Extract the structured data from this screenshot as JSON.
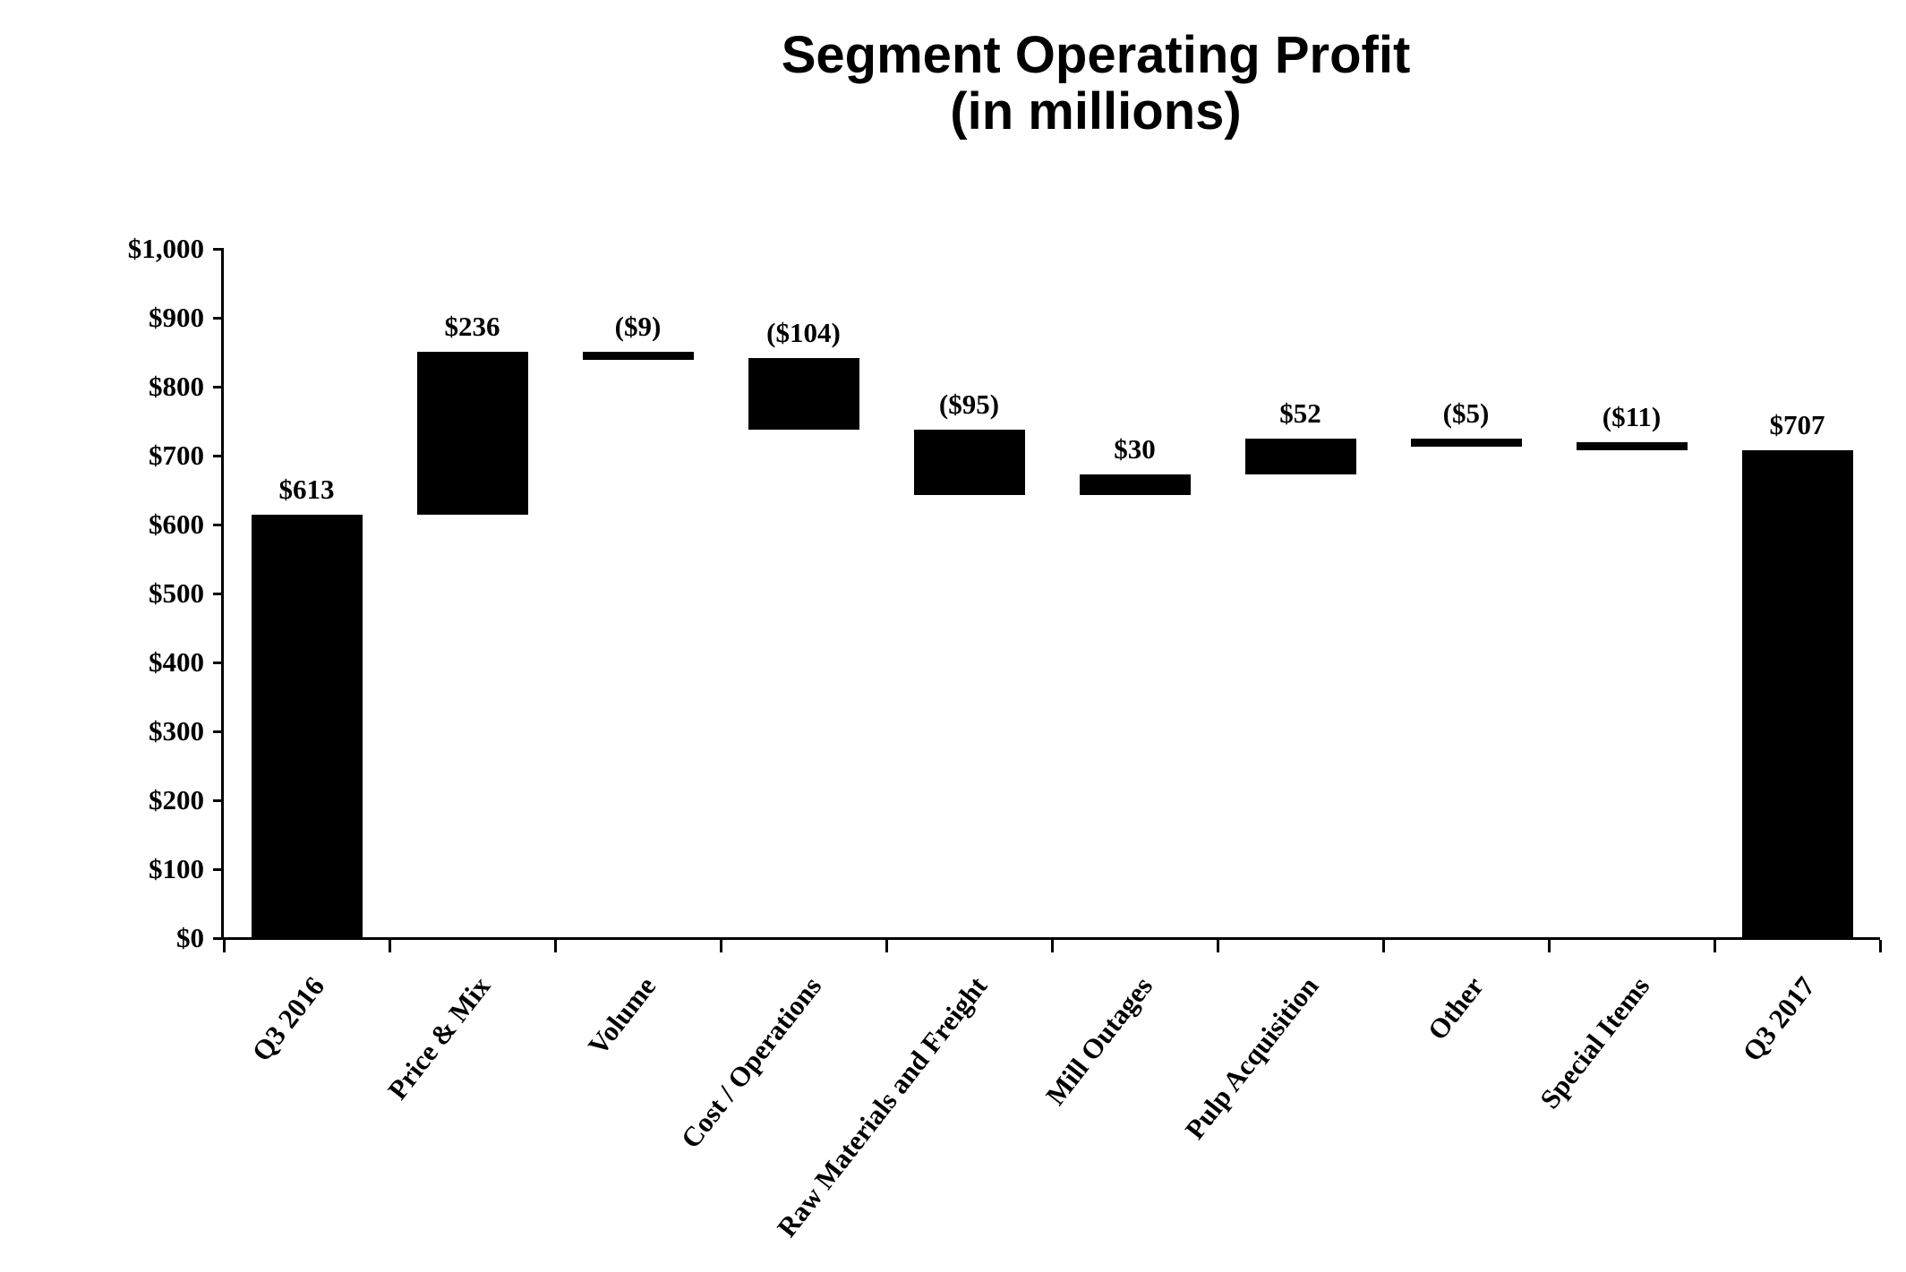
{
  "chart_data": {
    "type": "bar",
    "subtype": "waterfall",
    "title": "Segment Operating Profit",
    "subtitle": "(in millions)",
    "xlabel": "",
    "ylabel": "",
    "ylim": [
      0,
      1000
    ],
    "ytick_step": 100,
    "ytick_labels": [
      "$0",
      "$100",
      "$200",
      "$300",
      "$400",
      "$500",
      "$600",
      "$700",
      "$800",
      "$900",
      "$1,000"
    ],
    "grid": false,
    "legend": false,
    "bar_color": "#000000",
    "text_color": "#000000",
    "background_color": "#ffffff",
    "categories": [
      "Q3 2016",
      "Price & Mix",
      "Volume",
      "Cost / Operations",
      "Raw Materials and Freight",
      "Mill Outages",
      "Pulp Acquisition",
      "Other",
      "Special Items",
      "Q3 2017"
    ],
    "series": [
      {
        "name": "Segment Operating Profit",
        "values": [
          613,
          236,
          -9,
          -104,
          -95,
          30,
          52,
          -5,
          -11,
          707
        ],
        "kinds": [
          "total",
          "delta",
          "delta",
          "delta",
          "delta",
          "delta",
          "delta",
          "delta",
          "delta",
          "total"
        ]
      }
    ],
    "bar_labels": [
      "$613",
      "$236",
      "($9)",
      "($104)",
      "($95)",
      "$30",
      "$52",
      "($5)",
      "($11)",
      "$707"
    ],
    "cumulative_spans": [
      [
        0,
        613
      ],
      [
        613,
        849
      ],
      [
        840,
        849
      ],
      [
        736,
        840
      ],
      [
        641,
        736
      ],
      [
        641,
        671
      ],
      [
        671,
        723
      ],
      [
        718,
        723
      ],
      [
        707,
        718
      ],
      [
        0,
        707
      ]
    ]
  }
}
